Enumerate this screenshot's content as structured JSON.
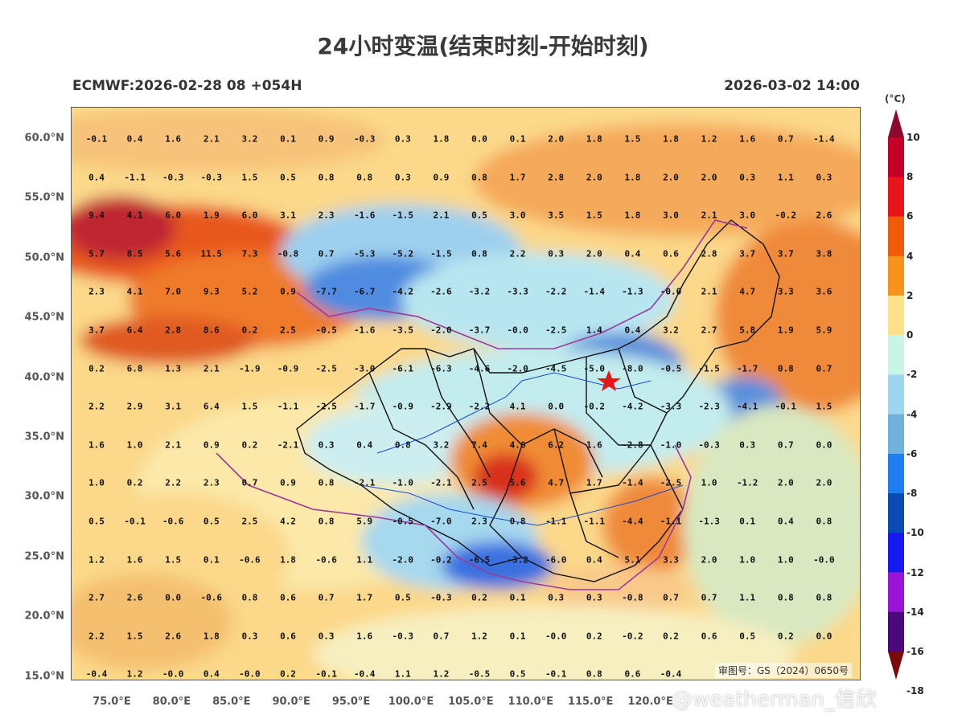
{
  "title": "24小时变温(结束时刻-开始时刻)",
  "model_run": "ECMWF:2026-02-28 08 +054H",
  "valid_time": "2026-03-02 14:00",
  "unit": "(°C)",
  "review_number": "审图号：GS（2024）0650号",
  "watermark": "@weatherman_信欣",
  "lat_labels": [
    "60.0°N",
    "55.0°N",
    "50.0°N",
    "45.0°N",
    "40.0°N",
    "35.0°N",
    "30.0°N",
    "25.0°N",
    "20.0°N",
    "15.0°N"
  ],
  "lon_labels": [
    "75.0°E",
    "80.0°E",
    "85.0°E",
    "90.0°E",
    "95.0°E",
    "100.0°E",
    "105.0°E",
    "110.0°E",
    "115.0°E",
    "120.0°E"
  ],
  "colorbar": {
    "ticks": [
      "10",
      "8",
      "6",
      "4",
      "2",
      "0",
      "-2",
      "-4",
      "-6",
      "-8",
      "-10",
      "-12",
      "-14",
      "-16",
      "-18"
    ],
    "colors": [
      "#8b0a2c",
      "#c40028",
      "#e8141a",
      "#f05a0a",
      "#f7921a",
      "#fde08a",
      "#c8f5e6",
      "#9dd6ee",
      "#6fb2dc",
      "#1f7ef0",
      "#0a4bb4",
      "#1818f0",
      "#9a14d8",
      "#4a0a7a",
      "#7a0a0a"
    ]
  },
  "grid_values": [
    [
      "-0.1",
      "0.4",
      "1.6",
      "2.1",
      "3.2",
      "0.1",
      "0.9",
      "-0.3",
      "0.3",
      "1.8",
      "0.0",
      "0.1",
      "2.0",
      "1.8",
      "1.5",
      "1.8",
      "1.2",
      "1.6",
      "0.7",
      "-1.4"
    ],
    [
      "0.4",
      "-1.1",
      "-0.3",
      "-0.3",
      "1.5",
      "0.5",
      "0.8",
      "0.8",
      "0.3",
      "0.9",
      "0.8",
      "1.7",
      "2.8",
      "2.0",
      "1.8",
      "2.0",
      "2.0",
      "0.3",
      "1.1",
      "0.3"
    ],
    [
      "9.4",
      "4.1",
      "6.0",
      "1.9",
      "6.0",
      "3.1",
      "2.3",
      "-1.6",
      "-1.5",
      "2.1",
      "0.5",
      "3.0",
      "3.5",
      "1.5",
      "1.8",
      "3.0",
      "2.1",
      "3.0",
      "-0.2",
      "2.6"
    ],
    [
      "5.7",
      "8.5",
      "5.6",
      "11.5",
      "7.3",
      "-0.8",
      "0.7",
      "-5.3",
      "-5.2",
      "-1.5",
      "0.8",
      "2.2",
      "0.3",
      "2.0",
      "0.4",
      "0.6",
      "2.8",
      "3.7",
      "3.7",
      "3.8"
    ],
    [
      "2.3",
      "4.1",
      "7.0",
      "9.3",
      "5.2",
      "0.9",
      "-7.7",
      "-6.7",
      "-4.2",
      "-2.6",
      "-3.2",
      "-3.3",
      "-2.2",
      "-1.4",
      "-1.3",
      "-0.0",
      "2.1",
      "4.7",
      "3.3",
      "3.6"
    ],
    [
      "3.7",
      "6.4",
      "2.8",
      "8.6",
      "0.2",
      "2.5",
      "-0.5",
      "-1.6",
      "-3.5",
      "-2.0",
      "-3.7",
      "-0.0",
      "-2.5",
      "1.4",
      "0.4",
      "3.2",
      "2.7",
      "5.8",
      "1.9",
      "5.9"
    ],
    [
      "0.2",
      "6.8",
      "1.3",
      "2.1",
      "-1.9",
      "-0.9",
      "-2.5",
      "-3.0",
      "-6.1",
      "-6.3",
      "-4.6",
      "-2.0",
      "-4.5",
      "-5.0",
      "-8.0",
      "-0.5",
      "-1.5",
      "-1.7",
      "0.8",
      "0.7"
    ],
    [
      "2.2",
      "2.9",
      "3.1",
      "6.4",
      "1.5",
      "-1.1",
      "-2.5",
      "-1.7",
      "-0.9",
      "-2.9",
      "-2.2",
      "4.1",
      "0.0",
      "-0.2",
      "-4.2",
      "-3.3",
      "-2.3",
      "-4.1",
      "-0.1",
      "1.5"
    ],
    [
      "1.6",
      "1.0",
      "2.1",
      "0.9",
      "0.2",
      "-2.1",
      "0.3",
      "0.4",
      "0.8",
      "3.2",
      "7.4",
      "4.6",
      "6.2",
      "1.6",
      "-2.8",
      "-1.0",
      "-0.3",
      "0.3",
      "0.7",
      "0.0"
    ],
    [
      "1.0",
      "0.2",
      "2.2",
      "2.3",
      "0.7",
      "0.9",
      "0.8",
      "-2.1",
      "-1.0",
      "-2.1",
      "2.5",
      "5.6",
      "4.7",
      "1.7",
      "-1.4",
      "-2.5",
      "1.0",
      "-1.2",
      "2.0",
      "2.0"
    ],
    [
      "0.5",
      "-0.1",
      "-0.6",
      "0.5",
      "2.5",
      "4.2",
      "0.8",
      "5.9",
      "-0.5",
      "-7.0",
      "2.3",
      "0.8",
      "-1.1",
      "-1.1",
      "-4.4",
      "-1.1",
      "-1.3",
      "0.1",
      "0.4",
      "0.8"
    ],
    [
      "1.2",
      "1.6",
      "1.5",
      "0.1",
      "-0.6",
      "1.8",
      "-0.6",
      "1.1",
      "-2.0",
      "-0.2",
      "-6.5",
      "-3.2",
      "-6.0",
      "0.4",
      "5.1",
      "3.3",
      "2.0",
      "1.0",
      "1.0",
      "-0.0"
    ],
    [
      "2.7",
      "2.6",
      "0.0",
      "-0.6",
      "0.8",
      "0.6",
      "0.7",
      "1.7",
      "0.5",
      "-0.3",
      "0.2",
      "0.1",
      "0.3",
      "0.3",
      "-0.8",
      "0.7",
      "0.7",
      "1.1",
      "0.8",
      "0.8"
    ],
    [
      "2.2",
      "1.5",
      "2.6",
      "1.8",
      "0.3",
      "0.6",
      "0.3",
      "1.6",
      "-0.3",
      "0.7",
      "1.2",
      "0.1",
      "-0.0",
      "0.2",
      "-0.2",
      "0.2",
      "0.6",
      "0.5",
      "0.2",
      "0.0"
    ],
    [
      "-0.4",
      "1.2",
      "-0.0",
      "0.4",
      "-0.0",
      "0.2",
      "-0.1",
      "-0.4",
      "1.1",
      "1.2",
      "-0.5",
      "0.5",
      "-0.1",
      "0.8",
      "0.6",
      "-0.4",
      "",
      "",
      "",
      ""
    ]
  ]
}
